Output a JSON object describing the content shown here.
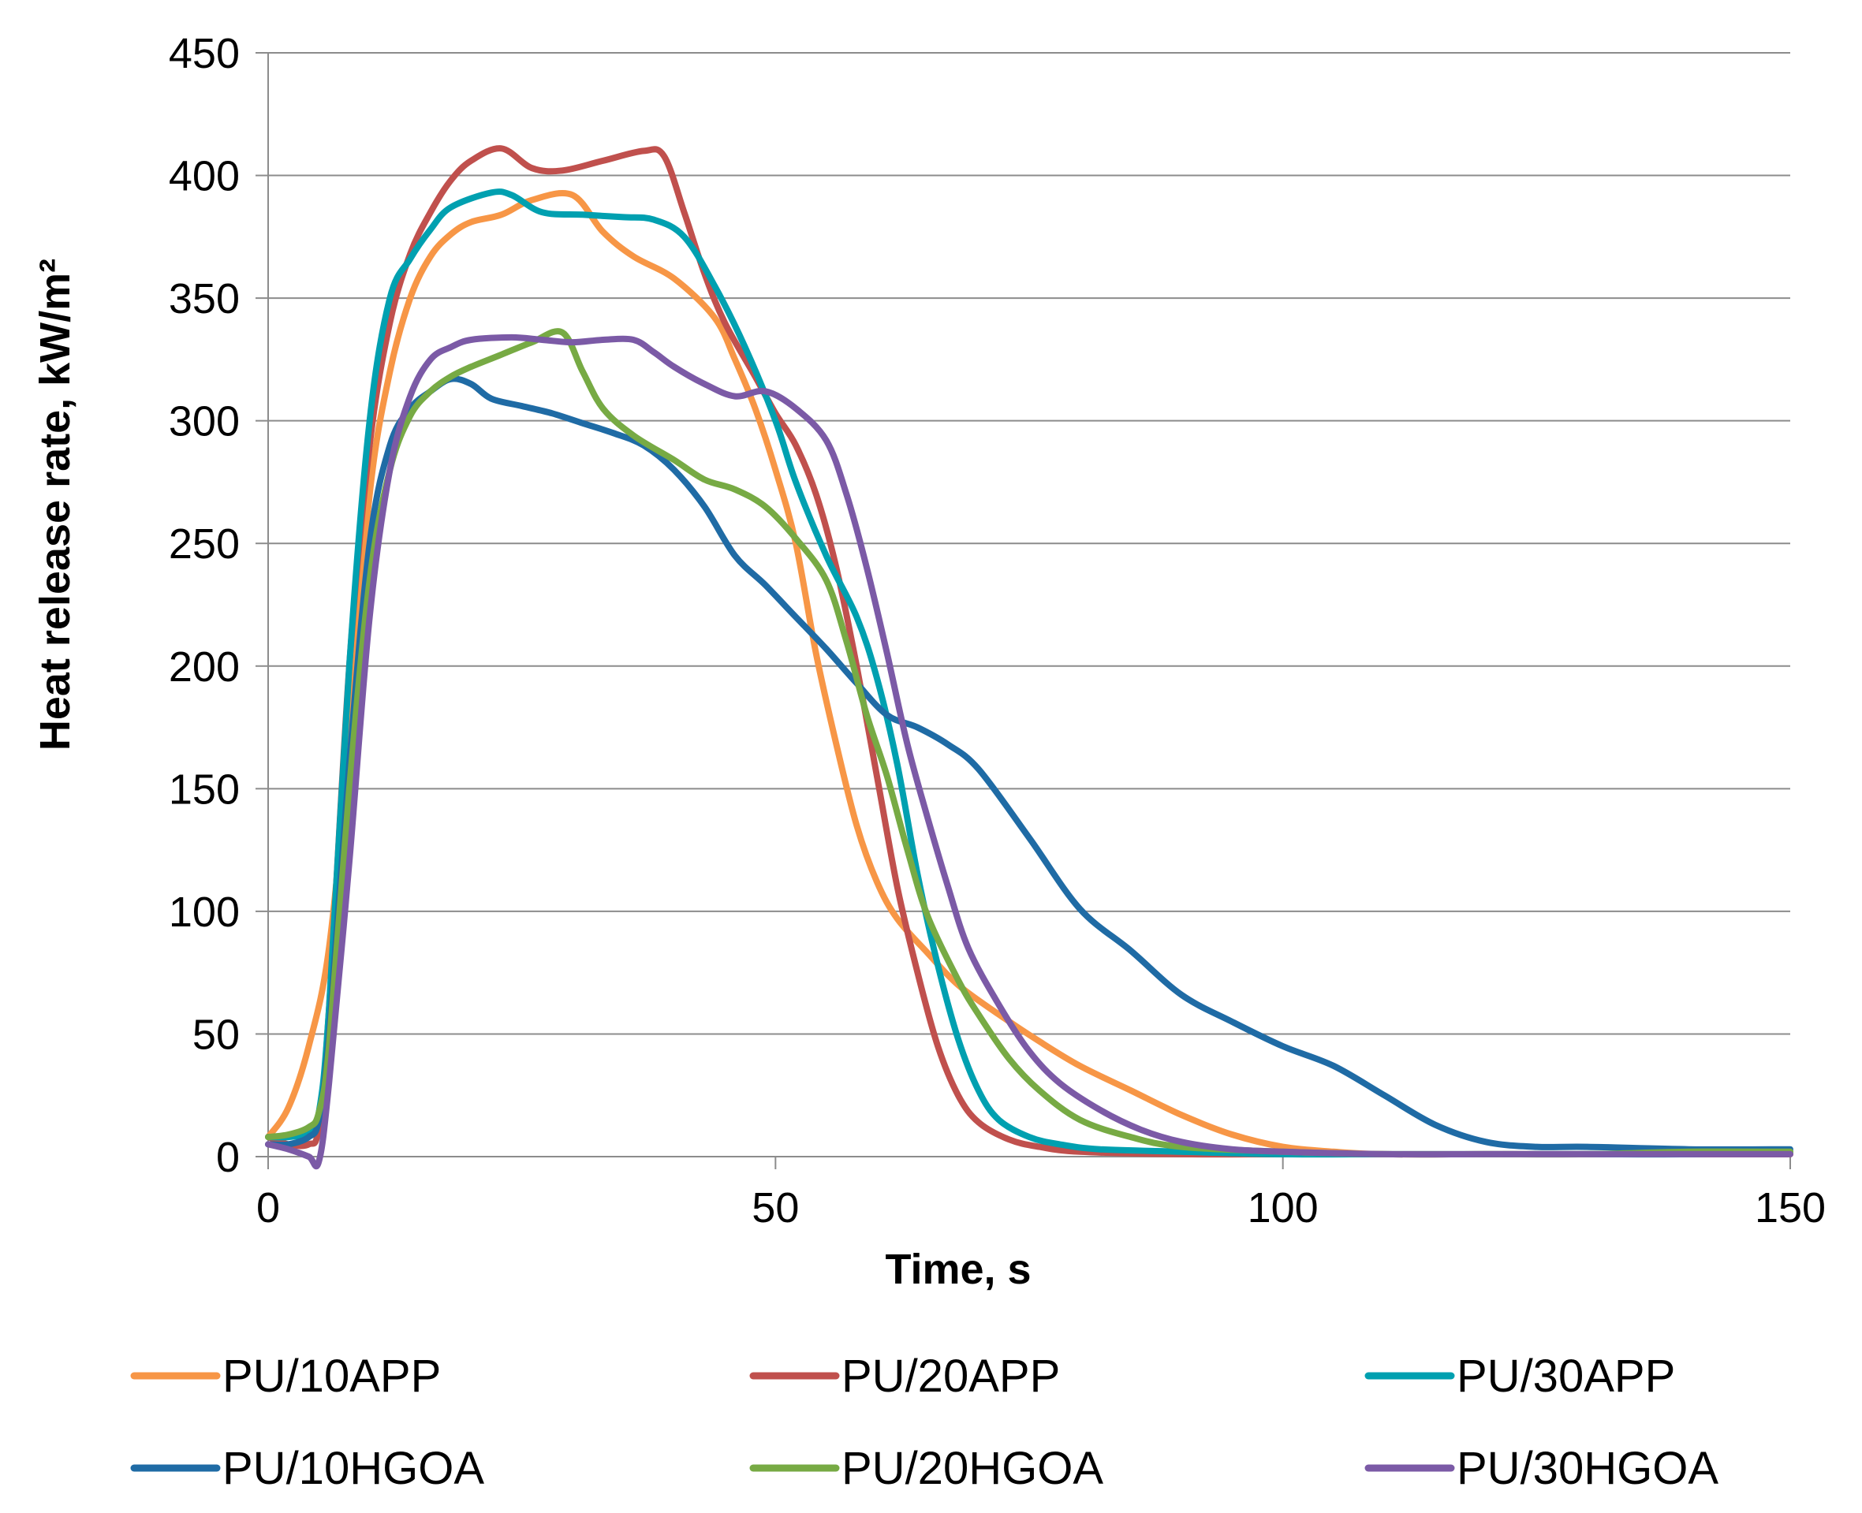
{
  "chart_data": {
    "type": "line",
    "title": "",
    "xlabel": "Time, s",
    "ylabel": "Heat release rate, kW/m²",
    "xlim": [
      0,
      150
    ],
    "ylim": [
      0,
      450
    ],
    "xticks": [
      0,
      50,
      100,
      150
    ],
    "yticks": [
      0,
      50,
      100,
      150,
      200,
      250,
      300,
      350,
      400,
      450
    ],
    "grid": "horizontal",
    "legend_position": "bottom",
    "series": [
      {
        "name": "PU/10APP",
        "color": "#F79646",
        "points": [
          [
            0,
            8
          ],
          [
            2,
            20
          ],
          [
            4,
            45
          ],
          [
            6,
            85
          ],
          [
            8,
            170
          ],
          [
            10,
            270
          ],
          [
            12,
            320
          ],
          [
            14,
            350
          ],
          [
            16,
            367
          ],
          [
            18,
            376
          ],
          [
            20,
            381
          ],
          [
            23,
            384
          ],
          [
            26,
            390
          ],
          [
            30,
            392
          ],
          [
            33,
            377
          ],
          [
            36,
            367
          ],
          [
            40,
            358
          ],
          [
            44,
            342
          ],
          [
            46,
            325
          ],
          [
            48,
            305
          ],
          [
            50,
            280
          ],
          [
            52,
            250
          ],
          [
            54,
            205
          ],
          [
            56,
            168
          ],
          [
            58,
            135
          ],
          [
            60,
            112
          ],
          [
            62,
            97
          ],
          [
            65,
            83
          ],
          [
            68,
            70
          ],
          [
            72,
            58
          ],
          [
            76,
            47
          ],
          [
            80,
            37
          ],
          [
            85,
            27
          ],
          [
            90,
            17
          ],
          [
            95,
            9
          ],
          [
            100,
            4
          ],
          [
            105,
            2
          ],
          [
            110,
            1
          ],
          [
            120,
            1
          ],
          [
            130,
            1
          ],
          [
            140,
            1
          ],
          [
            150,
            1
          ]
        ]
      },
      {
        "name": "PU/20APP",
        "color": "#C0504D",
        "points": [
          [
            0,
            8
          ],
          [
            2,
            5
          ],
          [
            4,
            5
          ],
          [
            5,
            12
          ],
          [
            6,
            60
          ],
          [
            8,
            200
          ],
          [
            10,
            290
          ],
          [
            12,
            340
          ],
          [
            14,
            368
          ],
          [
            16,
            385
          ],
          [
            18,
            398
          ],
          [
            20,
            406
          ],
          [
            23,
            411
          ],
          [
            26,
            403
          ],
          [
            29,
            402
          ],
          [
            33,
            406
          ],
          [
            37,
            410
          ],
          [
            39,
            408
          ],
          [
            41,
            385
          ],
          [
            43,
            360
          ],
          [
            45,
            340
          ],
          [
            48,
            318
          ],
          [
            50,
            303
          ],
          [
            52,
            290
          ],
          [
            54,
            270
          ],
          [
            56,
            240
          ],
          [
            58,
            200
          ],
          [
            60,
            155
          ],
          [
            62,
            110
          ],
          [
            64,
            75
          ],
          [
            66,
            45
          ],
          [
            68,
            25
          ],
          [
            70,
            14
          ],
          [
            73,
            7
          ],
          [
            76,
            4
          ],
          [
            80,
            2
          ],
          [
            90,
            1
          ],
          [
            100,
            1
          ],
          [
            110,
            1
          ],
          [
            120,
            1
          ],
          [
            130,
            1
          ],
          [
            140,
            1
          ],
          [
            150,
            1
          ]
        ]
      },
      {
        "name": "PU/30APP",
        "color": "#00A0B0",
        "points": [
          [
            0,
            8
          ],
          [
            2,
            8
          ],
          [
            4,
            10
          ],
          [
            5,
            18
          ],
          [
            6,
            60
          ],
          [
            8,
            200
          ],
          [
            10,
            300
          ],
          [
            12,
            350
          ],
          [
            14,
            366
          ],
          [
            16,
            378
          ],
          [
            18,
            387
          ],
          [
            22,
            393
          ],
          [
            24,
            392
          ],
          [
            27,
            385
          ],
          [
            31,
            384
          ],
          [
            35,
            383
          ],
          [
            38,
            382
          ],
          [
            41,
            375
          ],
          [
            44,
            355
          ],
          [
            47,
            330
          ],
          [
            50,
            300
          ],
          [
            52,
            275
          ],
          [
            55,
            245
          ],
          [
            58,
            220
          ],
          [
            60,
            195
          ],
          [
            62,
            160
          ],
          [
            64,
            115
          ],
          [
            66,
            78
          ],
          [
            68,
            48
          ],
          [
            70,
            27
          ],
          [
            72,
            15
          ],
          [
            75,
            8
          ],
          [
            78,
            5
          ],
          [
            82,
            3
          ],
          [
            90,
            2
          ],
          [
            100,
            1
          ],
          [
            110,
            1
          ],
          [
            120,
            1
          ],
          [
            130,
            1
          ],
          [
            140,
            1
          ],
          [
            150,
            2
          ]
        ]
      },
      {
        "name": "PU/10HGOA",
        "color": "#1F6BA5",
        "points": [
          [
            0,
            5
          ],
          [
            2,
            5
          ],
          [
            4,
            8
          ],
          [
            5,
            15
          ],
          [
            6,
            50
          ],
          [
            8,
            160
          ],
          [
            10,
            250
          ],
          [
            12,
            290
          ],
          [
            14,
            305
          ],
          [
            16,
            312
          ],
          [
            18,
            317
          ],
          [
            20,
            315
          ],
          [
            22,
            309
          ],
          [
            25,
            306
          ],
          [
            28,
            303
          ],
          [
            31,
            299
          ],
          [
            34,
            295
          ],
          [
            37,
            290
          ],
          [
            40,
            280
          ],
          [
            43,
            265
          ],
          [
            46,
            245
          ],
          [
            49,
            233
          ],
          [
            52,
            220
          ],
          [
            55,
            207
          ],
          [
            58,
            193
          ],
          [
            61,
            180
          ],
          [
            64,
            175
          ],
          [
            67,
            168
          ],
          [
            70,
            158
          ],
          [
            75,
            130
          ],
          [
            80,
            101
          ],
          [
            85,
            84
          ],
          [
            90,
            66
          ],
          [
            95,
            55
          ],
          [
            100,
            45
          ],
          [
            105,
            37
          ],
          [
            110,
            25
          ],
          [
            115,
            13
          ],
          [
            120,
            6
          ],
          [
            125,
            4
          ],
          [
            130,
            4
          ],
          [
            140,
            3
          ],
          [
            150,
            3
          ]
        ]
      },
      {
        "name": "PU/20HGOA",
        "color": "#77AA44",
        "points": [
          [
            0,
            8
          ],
          [
            2,
            9
          ],
          [
            4,
            12
          ],
          [
            5,
            18
          ],
          [
            6,
            45
          ],
          [
            8,
            150
          ],
          [
            10,
            235
          ],
          [
            12,
            280
          ],
          [
            14,
            302
          ],
          [
            16,
            312
          ],
          [
            18,
            318
          ],
          [
            20,
            322
          ],
          [
            23,
            327
          ],
          [
            26,
            332
          ],
          [
            29,
            336
          ],
          [
            31,
            320
          ],
          [
            33,
            305
          ],
          [
            36,
            294
          ],
          [
            40,
            284
          ],
          [
            43,
            276
          ],
          [
            46,
            272
          ],
          [
            49,
            265
          ],
          [
            52,
            252
          ],
          [
            55,
            235
          ],
          [
            57,
            210
          ],
          [
            59,
            180
          ],
          [
            61,
            155
          ],
          [
            63,
            125
          ],
          [
            65,
            98
          ],
          [
            68,
            72
          ],
          [
            70,
            58
          ],
          [
            73,
            40
          ],
          [
            76,
            27
          ],
          [
            80,
            15
          ],
          [
            85,
            8
          ],
          [
            90,
            4
          ],
          [
            100,
            2
          ],
          [
            110,
            1
          ],
          [
            120,
            1
          ],
          [
            130,
            1
          ],
          [
            140,
            2
          ],
          [
            150,
            2
          ]
        ]
      },
      {
        "name": "PU/30HGOA",
        "color": "#7B5AA6",
        "points": [
          [
            0,
            5
          ],
          [
            2,
            3
          ],
          [
            4,
            0
          ],
          [
            5,
            -2
          ],
          [
            6,
            30
          ],
          [
            8,
            120
          ],
          [
            10,
            220
          ],
          [
            12,
            280
          ],
          [
            14,
            310
          ],
          [
            16,
            325
          ],
          [
            18,
            330
          ],
          [
            20,
            333
          ],
          [
            24,
            334
          ],
          [
            27,
            333
          ],
          [
            30,
            332
          ],
          [
            33,
            333
          ],
          [
            36,
            333
          ],
          [
            38,
            328
          ],
          [
            40,
            322
          ],
          [
            43,
            315
          ],
          [
            46,
            310
          ],
          [
            49,
            312
          ],
          [
            52,
            305
          ],
          [
            55,
            292
          ],
          [
            57,
            270
          ],
          [
            59,
            240
          ],
          [
            61,
            205
          ],
          [
            63,
            168
          ],
          [
            65,
            138
          ],
          [
            67,
            110
          ],
          [
            69,
            85
          ],
          [
            72,
            62
          ],
          [
            75,
            43
          ],
          [
            78,
            30
          ],
          [
            82,
            19
          ],
          [
            86,
            11
          ],
          [
            90,
            6
          ],
          [
            95,
            3
          ],
          [
            100,
            2
          ],
          [
            110,
            1
          ],
          [
            120,
            1
          ],
          [
            130,
            1
          ],
          [
            140,
            1
          ],
          [
            150,
            1
          ]
        ]
      }
    ]
  }
}
